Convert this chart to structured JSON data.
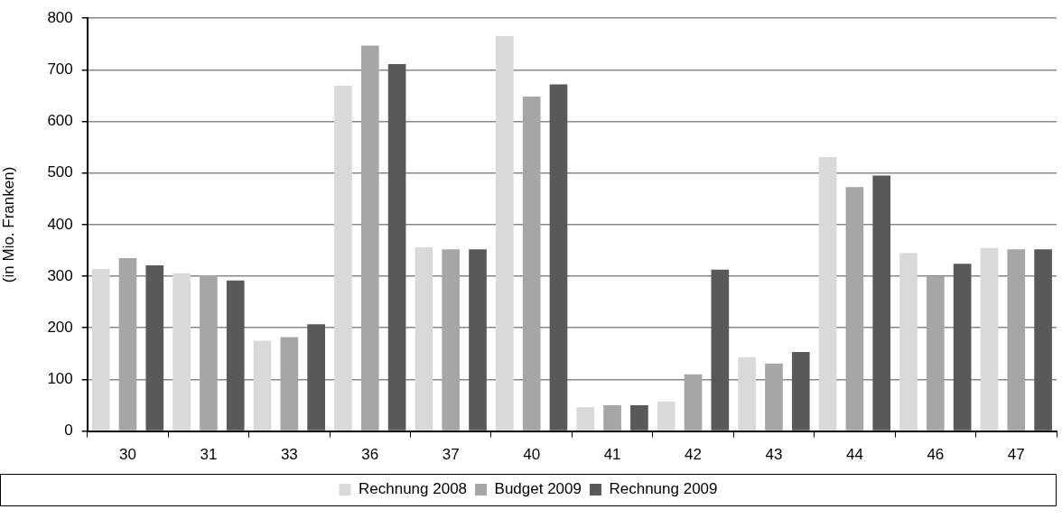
{
  "chart_data": {
    "type": "bar",
    "ylabel": "(in Mio. Franken)",
    "categories": [
      "30",
      "31",
      "33",
      "36",
      "37",
      "40",
      "41",
      "42",
      "43",
      "44",
      "46",
      "47"
    ],
    "series": [
      {
        "name": "Rechnung 2008",
        "color": "#d9d9d9",
        "values": [
          314,
          306,
          175,
          669,
          356,
          766,
          46,
          57,
          143,
          531,
          345,
          355
        ]
      },
      {
        "name": "Budget 2009",
        "color": "#a6a6a6",
        "values": [
          335,
          302,
          182,
          747,
          352,
          648,
          50,
          110,
          131,
          473,
          300,
          352
        ]
      },
      {
        "name": "Rechnung 2009",
        "color": "#595959",
        "values": [
          321,
          292,
          207,
          711,
          352,
          672,
          50,
          313,
          153,
          495,
          324,
          352
        ]
      }
    ],
    "ylim": [
      0,
      800
    ],
    "yticks": [
      0,
      100,
      200,
      300,
      400,
      500,
      600,
      700,
      800
    ],
    "grid": "y",
    "legend": "bottom"
  }
}
